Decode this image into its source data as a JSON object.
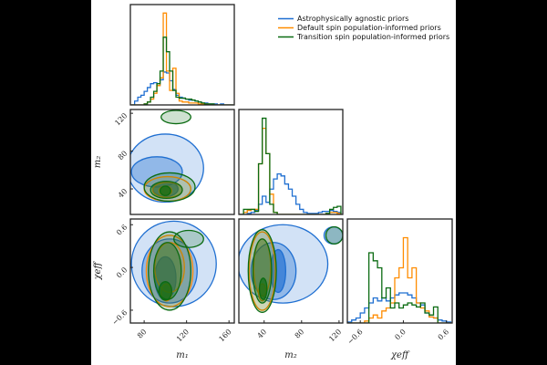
{
  "chart_data": {
    "type": "corner",
    "legend": {
      "placement": "top-right",
      "entries": [
        {
          "label": "Astrophysically agnostic priors",
          "color": "#1f6fd1"
        },
        {
          "label": "Default spin population-informed priors",
          "color": "#ff8c00"
        },
        {
          "label": "Transition spin population-informed priors",
          "color": "#0b6b12"
        }
      ]
    },
    "parameters": [
      {
        "key": "m1",
        "label": "m₁",
        "range": [
          67,
          165
        ],
        "ticks": [
          80,
          120,
          160
        ],
        "tick_labels": [
          "80",
          "120",
          "160"
        ]
      },
      {
        "key": "m2",
        "label": "m₂",
        "range": [
          13,
          124
        ],
        "ticks": [
          40,
          80,
          120
        ],
        "tick_labels": [
          "40",
          "80",
          "120"
        ]
      },
      {
        "key": "chi_eff",
        "label": "χeff",
        "range": [
          -0.78,
          0.68
        ],
        "ticks": [
          -0.6,
          0.0,
          0.6
        ],
        "tick_labels": [
          "−0.6",
          "0.0",
          "0.6"
        ]
      }
    ],
    "histograms": {
      "m1": {
        "start": 68,
        "step": 3,
        "series": [
          [
            0,
            0.04,
            0.08,
            0.1,
            0.14,
            0.18,
            0.22,
            0.23,
            0.2,
            0.26,
            0.34,
            0.33,
            0.25,
            0.16,
            0.1,
            0.08,
            0.07,
            0.06,
            0.05,
            0.05,
            0.04,
            0.03,
            0.02,
            0.02,
            0.01,
            0.01,
            0.01,
            0,
            0.01,
            0,
            0,
            0
          ],
          [
            0,
            0,
            0,
            0,
            0.01,
            0.03,
            0.06,
            0.12,
            0.2,
            0.28,
            0.95,
            0.35,
            0.15,
            0.38,
            0.12,
            0.04,
            0.03,
            0.03,
            0.02,
            0.02,
            0.02,
            0.01,
            0.01,
            0.01,
            0,
            0,
            0,
            0,
            0,
            0,
            0,
            0
          ],
          [
            0,
            0,
            0,
            0,
            0.01,
            0.03,
            0.08,
            0.14,
            0.22,
            0.35,
            0.7,
            0.55,
            0.35,
            0.15,
            0.08,
            0.07,
            0.07,
            0.06,
            0.06,
            0.05,
            0.04,
            0.03,
            0.02,
            0.01,
            0.01,
            0.01,
            0,
            0,
            0,
            0,
            0,
            0
          ]
        ]
      },
      "m2": {
        "start": 14,
        "step": 4,
        "series": [
          [
            0,
            0,
            0.01,
            0.02,
            0.04,
            0.1,
            0.18,
            0.12,
            0.25,
            0.35,
            0.4,
            0.38,
            0.3,
            0.25,
            0.18,
            0.1,
            0.05,
            0.02,
            0.01,
            0.01,
            0.01,
            0.02,
            0.03,
            0.03,
            0.04,
            0.03,
            0.02
          ],
          [
            0,
            0.02,
            0.04,
            0.05,
            0.05,
            0.5,
            0.85,
            0.6,
            0.2,
            0.02,
            0,
            0,
            0,
            0,
            0,
            0,
            0,
            0,
            0,
            0,
            0,
            0,
            0,
            0.01,
            0.02,
            0.02,
            0.01
          ],
          [
            0,
            0.05,
            0.05,
            0.05,
            0.03,
            0.5,
            0.95,
            0.6,
            0.1,
            0.02,
            0,
            0,
            0,
            0,
            0,
            0,
            0,
            0,
            0,
            0,
            0,
            0,
            0,
            0.01,
            0.05,
            0.07,
            0.08
          ]
        ]
      },
      "chi_eff": {
        "start": -0.78,
        "step": 0.06,
        "series": [
          [
            0.01,
            0.03,
            0.05,
            0.1,
            0.15,
            0.2,
            0.25,
            0.22,
            0.25,
            0.22,
            0.25,
            0.28,
            0.3,
            0.3,
            0.28,
            0.25,
            0.2,
            0.18,
            0.1,
            0.06,
            0.05,
            0.03,
            0.02,
            0.01
          ],
          [
            0,
            0,
            0,
            0,
            0.02,
            0.05,
            0.08,
            0.05,
            0.12,
            0.15,
            0.2,
            0.45,
            0.55,
            0.85,
            0.45,
            0.55,
            0.2,
            0.15,
            0.12,
            0.06,
            0.05,
            0,
            0,
            0
          ],
          [
            0,
            0,
            0,
            0,
            0,
            0.7,
            0.62,
            0.55,
            0.25,
            0.35,
            0.15,
            0.2,
            0.15,
            0.18,
            0.2,
            0.18,
            0.16,
            0.2,
            0.1,
            0.08,
            0.16,
            0,
            0,
            0
          ]
        ]
      }
    },
    "contours": {
      "m1_m2": [
        [
          {
            "cx": 100,
            "cy": 62,
            "rx": 36,
            "ry": 36,
            "level": 0.95
          },
          {
            "cx": 92,
            "cy": 58,
            "rx": 24,
            "ry": 16,
            "level": 0.68
          },
          {
            "cx": 100,
            "cy": 40,
            "rx": 12,
            "ry": 8,
            "level": 0.39
          }
        ],
        [
          {
            "cx": 102,
            "cy": 40,
            "rx": 22,
            "ry": 13,
            "level": 0.95
          },
          {
            "cx": 102,
            "cy": 39,
            "rx": 14,
            "ry": 8,
            "level": 0.68
          },
          {
            "cx": 100,
            "cy": 38,
            "rx": 6,
            "ry": 5,
            "level": 0.39
          }
        ],
        [
          {
            "cx": 104,
            "cy": 42,
            "rx": 24,
            "ry": 15,
            "level": 0.95
          },
          {
            "cx": 110,
            "cy": 116,
            "rx": 14,
            "ry": 7,
            "level": 0.95
          },
          {
            "cx": 101,
            "cy": 39,
            "rx": 15,
            "ry": 9,
            "level": 0.68
          },
          {
            "cx": 100,
            "cy": 38,
            "rx": 5,
            "ry": 5,
            "level": 0.39
          }
        ]
      ],
      "m1_chi_eff": [
        [
          {
            "cx": 108,
            "cy": 0.05,
            "rx": 40,
            "ry": 0.6,
            "level": 0.95
          },
          {
            "cx": 104,
            "cy": -0.05,
            "rx": 26,
            "ry": 0.45,
            "level": 0.68
          },
          {
            "cx": 100,
            "cy": -0.15,
            "rx": 10,
            "ry": 0.3,
            "level": 0.39
          }
        ],
        [
          {
            "cx": 104,
            "cy": -0.05,
            "rx": 22,
            "ry": 0.5,
            "level": 0.95
          },
          {
            "cx": 104,
            "cy": 0.0,
            "rx": 14,
            "ry": 0.35,
            "level": 0.68
          },
          {
            "cx": 101,
            "cy": -0.35,
            "rx": 5,
            "ry": 0.12,
            "level": 0.39
          }
        ],
        [
          {
            "cx": 104,
            "cy": -0.05,
            "rx": 20,
            "ry": 0.55,
            "level": 0.95
          },
          {
            "cx": 122,
            "cy": 0.4,
            "rx": 14,
            "ry": 0.12,
            "level": 0.95
          },
          {
            "cx": 102,
            "cy": -0.05,
            "rx": 13,
            "ry": 0.4,
            "level": 0.68
          },
          {
            "cx": 100,
            "cy": -0.33,
            "rx": 6,
            "ry": 0.13,
            "level": 0.39
          }
        ]
      ],
      "m2_chi_eff": [
        [
          {
            "cx": 60,
            "cy": 0.05,
            "rx": 48,
            "ry": 0.55,
            "level": 0.95
          },
          {
            "cx": 50,
            "cy": -0.05,
            "rx": 24,
            "ry": 0.4,
            "level": 0.68
          },
          {
            "cx": 55,
            "cy": -0.05,
            "rx": 8,
            "ry": 0.3,
            "level": 0.39
          },
          {
            "cx": 114,
            "cy": 0.45,
            "rx": 10,
            "ry": 0.12,
            "level": 0.68
          }
        ],
        [
          {
            "cx": 38,
            "cy": -0.05,
            "rx": 14,
            "ry": 0.55,
            "level": 0.95
          },
          {
            "cx": 38,
            "cy": 0.0,
            "rx": 9,
            "ry": 0.4,
            "level": 0.68
          },
          {
            "cx": 38,
            "cy": -0.35,
            "rx": 4,
            "ry": 0.12,
            "level": 0.39
          }
        ],
        [
          {
            "cx": 38,
            "cy": -0.05,
            "rx": 15,
            "ry": 0.58,
            "level": 0.95
          },
          {
            "cx": 115,
            "cy": 0.45,
            "rx": 9,
            "ry": 0.12,
            "level": 0.95
          },
          {
            "cx": 38,
            "cy": -0.05,
            "rx": 10,
            "ry": 0.45,
            "level": 0.68
          },
          {
            "cx": 39,
            "cy": -0.3,
            "rx": 4,
            "ry": 0.15,
            "level": 0.39
          }
        ]
      ]
    },
    "grid": false
  }
}
